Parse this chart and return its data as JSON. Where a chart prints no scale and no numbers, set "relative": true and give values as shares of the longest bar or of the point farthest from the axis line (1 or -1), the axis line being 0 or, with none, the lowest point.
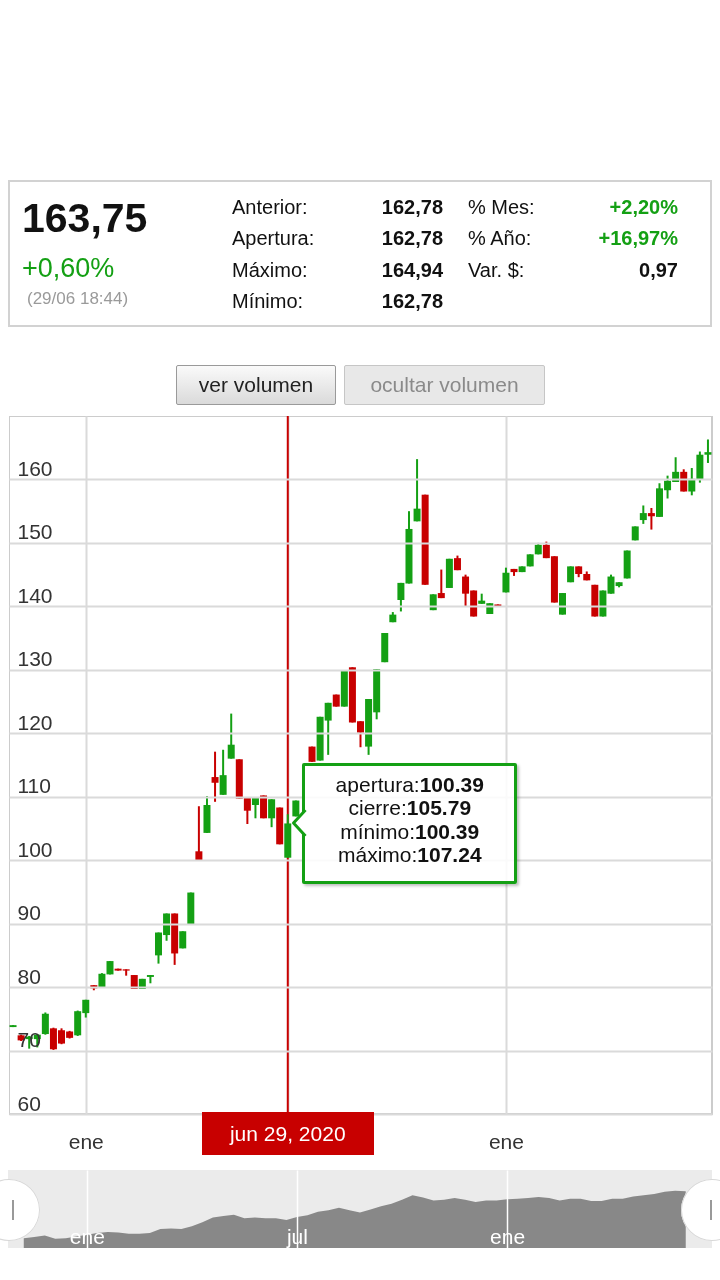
{
  "chart_data": [
    {
      "type": "other",
      "annotations": [
        "163,75",
        "+0,60%",
        "(29/06 18:44)",
        "Anterior:",
        "162,78",
        "% Mes:",
        "+2,20%",
        "Apertura:",
        "162,78",
        "% Año:",
        "+16,97%",
        "Máximo:",
        "164,94",
        "Var. $:",
        "0,97",
        "Mínimo:",
        "162,78",
        "ver volumen",
        "ocultar volumen"
      ]
    },
    {
      "type": "candlestick",
      "categories": [
        null,
        null,
        null,
        null,
        null,
        null,
        null,
        null,
        null,
        "ene",
        null,
        null,
        null,
        null,
        null,
        null,
        null,
        null,
        null,
        null,
        null,
        null,
        null,
        null,
        null,
        null,
        null,
        null,
        null,
        null,
        null,
        null,
        null,
        null,
        "jun 29, 2020",
        null,
        null,
        null,
        null,
        null,
        null,
        null,
        null,
        null,
        null,
        null,
        null,
        null,
        null,
        null,
        null,
        null,
        null,
        null,
        null,
        null,
        null,
        null,
        null,
        null,
        null,
        "ene",
        null,
        null,
        null,
        null,
        null,
        null,
        null,
        null,
        null,
        null,
        null,
        null,
        null,
        null,
        null,
        null,
        null,
        null,
        null,
        null,
        null,
        null,
        null,
        null,
        null
      ],
      "ohlc": [
        [
          73.7,
          74.0,
          73.7,
          74.0
        ],
        [
          72.4,
          72.5,
          71.5,
          71.6
        ],
        [
          71.8,
          72.3,
          70.3,
          72.2
        ],
        [
          71.8,
          72.6,
          70.5,
          72.5
        ],
        [
          72.6,
          76.0,
          72.5,
          75.8
        ],
        [
          73.5,
          73.6,
          70.1,
          70.2
        ],
        [
          73.2,
          73.5,
          71.0,
          71.1
        ],
        [
          73.0,
          73.1,
          71.9,
          72.0
        ],
        [
          72.4,
          76.3,
          72.3,
          76.2
        ],
        [
          75.9,
          78.0,
          75.2,
          78.0
        ],
        [
          80.3,
          80.3,
          79.5,
          79.8
        ],
        [
          80.0,
          82.2,
          79.9,
          82.1
        ],
        [
          82.0,
          84.1,
          82.0,
          84.1
        ],
        [
          82.9,
          82.9,
          82.6,
          82.6
        ],
        [
          82.8,
          82.8,
          81.8,
          82.6
        ],
        [
          81.9,
          81.9,
          79.7,
          79.7
        ],
        [
          79.7,
          81.3,
          79.7,
          81.3
        ],
        [
          81.6,
          81.9,
          80.6,
          81.9
        ],
        [
          85.0,
          88.6,
          83.7,
          88.6
        ],
        [
          88.2,
          91.6,
          87.3,
          91.6
        ],
        [
          91.6,
          91.6,
          83.5,
          85.3
        ],
        [
          86.1,
          88.8,
          86.1,
          88.8
        ],
        [
          89.9,
          94.9,
          89.9,
          94.9
        ],
        [
          101.4,
          108.5,
          99.9,
          99.9
        ],
        [
          104.3,
          110.1,
          104.3,
          108.7
        ],
        [
          113.1,
          117.1,
          109.2,
          112.2
        ],
        [
          110.3,
          117.4,
          110.3,
          113.4
        ],
        [
          116.0,
          123.1,
          116.0,
          118.2
        ],
        [
          115.9,
          115.9,
          109.7,
          109.7
        ],
        [
          109.9,
          109.9,
          105.7,
          107.8
        ],
        [
          108.7,
          109.9,
          106.6,
          109.9
        ],
        [
          110.2,
          110.2,
          106.6,
          106.6
        ],
        [
          106.6,
          109.6,
          105.2,
          109.6
        ],
        [
          108.3,
          108.3,
          102.5,
          102.5
        ],
        [
          100.39,
          107.24,
          100.39,
          105.79
        ],
        [
          106.9,
          109.4,
          106.9,
          109.4
        ],
        null,
        [
          117.9,
          117.9,
          115.5,
          115.5
        ],
        [
          115.7,
          122.6,
          115.7,
          122.6
        ],
        [
          122.0,
          124.8,
          116.6,
          124.8
        ],
        [
          126.1,
          126.1,
          124.2,
          124.2
        ],
        [
          124.2,
          129.9,
          124.2,
          129.9
        ],
        [
          130.4,
          130.4,
          121.7,
          121.7
        ],
        [
          121.9,
          121.9,
          117.8,
          120.1
        ],
        [
          117.9,
          125.4,
          116.6,
          125.4
        ],
        [
          123.3,
          130.1,
          122.2,
          130.1
        ],
        [
          131.2,
          135.8,
          131.2,
          135.8
        ],
        [
          137.5,
          139.1,
          137.5,
          138.7
        ],
        [
          141.0,
          143.7,
          139.2,
          143.7
        ],
        [
          143.6,
          155.0,
          143.6,
          152.2
        ],
        [
          153.4,
          163.2,
          153.4,
          155.4
        ],
        [
          157.6,
          157.6,
          143.4,
          143.4
        ],
        [
          139.4,
          141.9,
          139.4,
          141.9
        ],
        [
          142.1,
          145.8,
          141.3,
          141.3
        ],
        [
          142.9,
          147.5,
          142.9,
          147.5
        ],
        [
          147.6,
          148.0,
          145.7,
          145.7
        ],
        [
          144.7,
          145.0,
          139.9,
          142.0
        ],
        [
          142.5,
          142.5,
          138.4,
          138.4
        ],
        [
          140.4,
          142.0,
          140.4,
          140.9
        ],
        [
          138.8,
          140.5,
          138.8,
          140.5
        ],
        [
          140.3,
          140.3,
          140.0,
          140.0
        ],
        [
          142.2,
          146.1,
          142.2,
          145.3
        ],
        [
          145.9,
          145.9,
          144.8,
          145.4
        ],
        [
          145.4,
          146.3,
          145.4,
          146.3
        ],
        [
          146.3,
          148.2,
          146.3,
          148.2
        ],
        [
          148.2,
          150.0,
          148.2,
          149.7
        ],
        [
          149.7,
          150.2,
          147.6,
          147.6
        ],
        [
          147.9,
          147.9,
          140.6,
          140.6
        ],
        [
          138.7,
          142.1,
          138.7,
          142.1
        ],
        [
          143.8,
          146.3,
          143.8,
          146.3
        ],
        [
          146.3,
          146.3,
          144.6,
          145.1
        ],
        [
          145.1,
          145.5,
          144.1,
          144.1
        ],
        [
          143.4,
          143.4,
          138.4,
          138.4
        ],
        [
          138.4,
          142.5,
          138.4,
          142.5
        ],
        [
          142.0,
          145.0,
          142.0,
          144.7
        ],
        [
          143.2,
          143.8,
          143.0,
          143.8
        ],
        [
          144.4,
          148.8,
          144.4,
          148.8
        ],
        [
          150.4,
          152.6,
          150.4,
          152.6
        ],
        [
          153.6,
          155.9,
          153.0,
          154.7
        ],
        [
          154.7,
          155.5,
          152.1,
          154.2
        ],
        [
          154.1,
          159.4,
          154.1,
          158.6
        ],
        [
          158.3,
          160.6,
          157.0,
          159.8
        ],
        [
          159.6,
          163.5,
          159.6,
          161.2
        ],
        [
          161.2,
          161.6,
          158.1,
          158.1
        ],
        [
          158.1,
          161.8,
          157.5,
          160.1
        ],
        [
          160.0,
          164.4,
          159.5,
          163.9
        ],
        [
          163.9,
          166.3,
          162.6,
          164.3
        ]
      ],
      "colors": [
        "#14a014",
        "#c80000",
        "#14a014",
        "#14a014",
        "#14a014",
        "#c80000",
        "#c80000",
        "#c80000",
        "#14a014",
        "#14a014",
        "#c80000",
        "#14a014",
        "#14a014",
        "#c80000",
        "#c80000",
        "#c80000",
        "#14a014",
        "#14a014",
        "#14a014",
        "#14a014",
        "#c80000",
        "#14a014",
        "#14a014",
        "#c80000",
        "#14a014",
        "#c80000",
        "#14a014",
        "#14a014",
        "#c80000",
        "#c80000",
        "#14a014",
        "#c80000",
        "#14a014",
        "#c80000",
        "#14a014",
        "#14a014",
        null,
        "#c80000",
        "#14a014",
        "#14a014",
        "#c80000",
        "#14a014",
        "#c80000",
        "#c80000",
        "#14a014",
        "#14a014",
        "#14a014",
        "#14a014",
        "#14a014",
        "#14a014",
        "#14a014",
        "#c80000",
        "#14a014",
        "#c80000",
        "#14a014",
        "#c80000",
        "#c80000",
        "#c80000",
        "#14a014",
        "#14a014",
        "#c80000",
        "#14a014",
        "#c80000",
        "#14a014",
        "#14a014",
        "#14a014",
        "#c80000",
        "#c80000",
        "#14a014",
        "#14a014",
        "#c80000",
        "#c80000",
        "#c80000",
        "#14a014",
        "#14a014",
        "#14a014",
        "#14a014",
        "#14a014",
        "#14a014",
        "#c80000",
        "#14a014",
        "#14a014",
        "#14a014",
        "#c80000",
        "#14a014",
        "#14a014",
        "#14a014"
      ],
      "ylim": [
        60,
        170
      ],
      "yticks": [
        60,
        70,
        80,
        90,
        100,
        110,
        120,
        130,
        140,
        150,
        160
      ],
      "grid": true,
      "ref_lines": [
        {
          "axis": "x",
          "value": "jun 29, 2020",
          "color": "#c80000"
        }
      ],
      "annotations": [
        {
          "text": "apertura:100.39\ncierre:105.79\nmínimo:100.39\nmáximo:107.24",
          "x": "jun 29, 2020",
          "y": 105.79
        }
      ]
    },
    {
      "type": "area",
      "relative": true,
      "categories": [
        null,
        null,
        null,
        null,
        null,
        null,
        null,
        "ene",
        null,
        null,
        null,
        null,
        null,
        null,
        null,
        null,
        null,
        null,
        null,
        null,
        null,
        null,
        null,
        null,
        null,
        null,
        null,
        "jul",
        null,
        null,
        null,
        null,
        null,
        null,
        null,
        null,
        null,
        null,
        null,
        null,
        null,
        null,
        null,
        null,
        null,
        null,
        null,
        "ene",
        null,
        null,
        null,
        null,
        null,
        null,
        null,
        null,
        null,
        null,
        null,
        null,
        null,
        null,
        null,
        null,
        null,
        null,
        null
      ],
      "values": [
        null,
        0.17,
        0.19,
        0.22,
        0.16,
        0.17,
        0.2,
        0.23,
        0.26,
        0.28,
        0.27,
        0.25,
        0.25,
        0.26,
        0.33,
        0.34,
        0.33,
        0.38,
        0.45,
        0.53,
        0.56,
        0.58,
        0.52,
        0.53,
        0.52,
        0.52,
        0.49,
        0.54,
        0.57,
        0.63,
        0.66,
        0.7,
        0.66,
        0.62,
        0.67,
        0.73,
        0.77,
        0.84,
        0.92,
        0.88,
        0.83,
        0.84,
        0.87,
        0.84,
        0.8,
        0.83,
        0.83,
        0.85,
        0.86,
        0.87,
        0.89,
        0.87,
        0.83,
        0.86,
        0.86,
        0.82,
        0.82,
        0.86,
        0.86,
        0.9,
        0.92,
        0.94,
        0.98,
        1,
        0.99,
        null,
        null
      ],
      "color": "#888888",
      "grid": "x"
    }
  ]
}
